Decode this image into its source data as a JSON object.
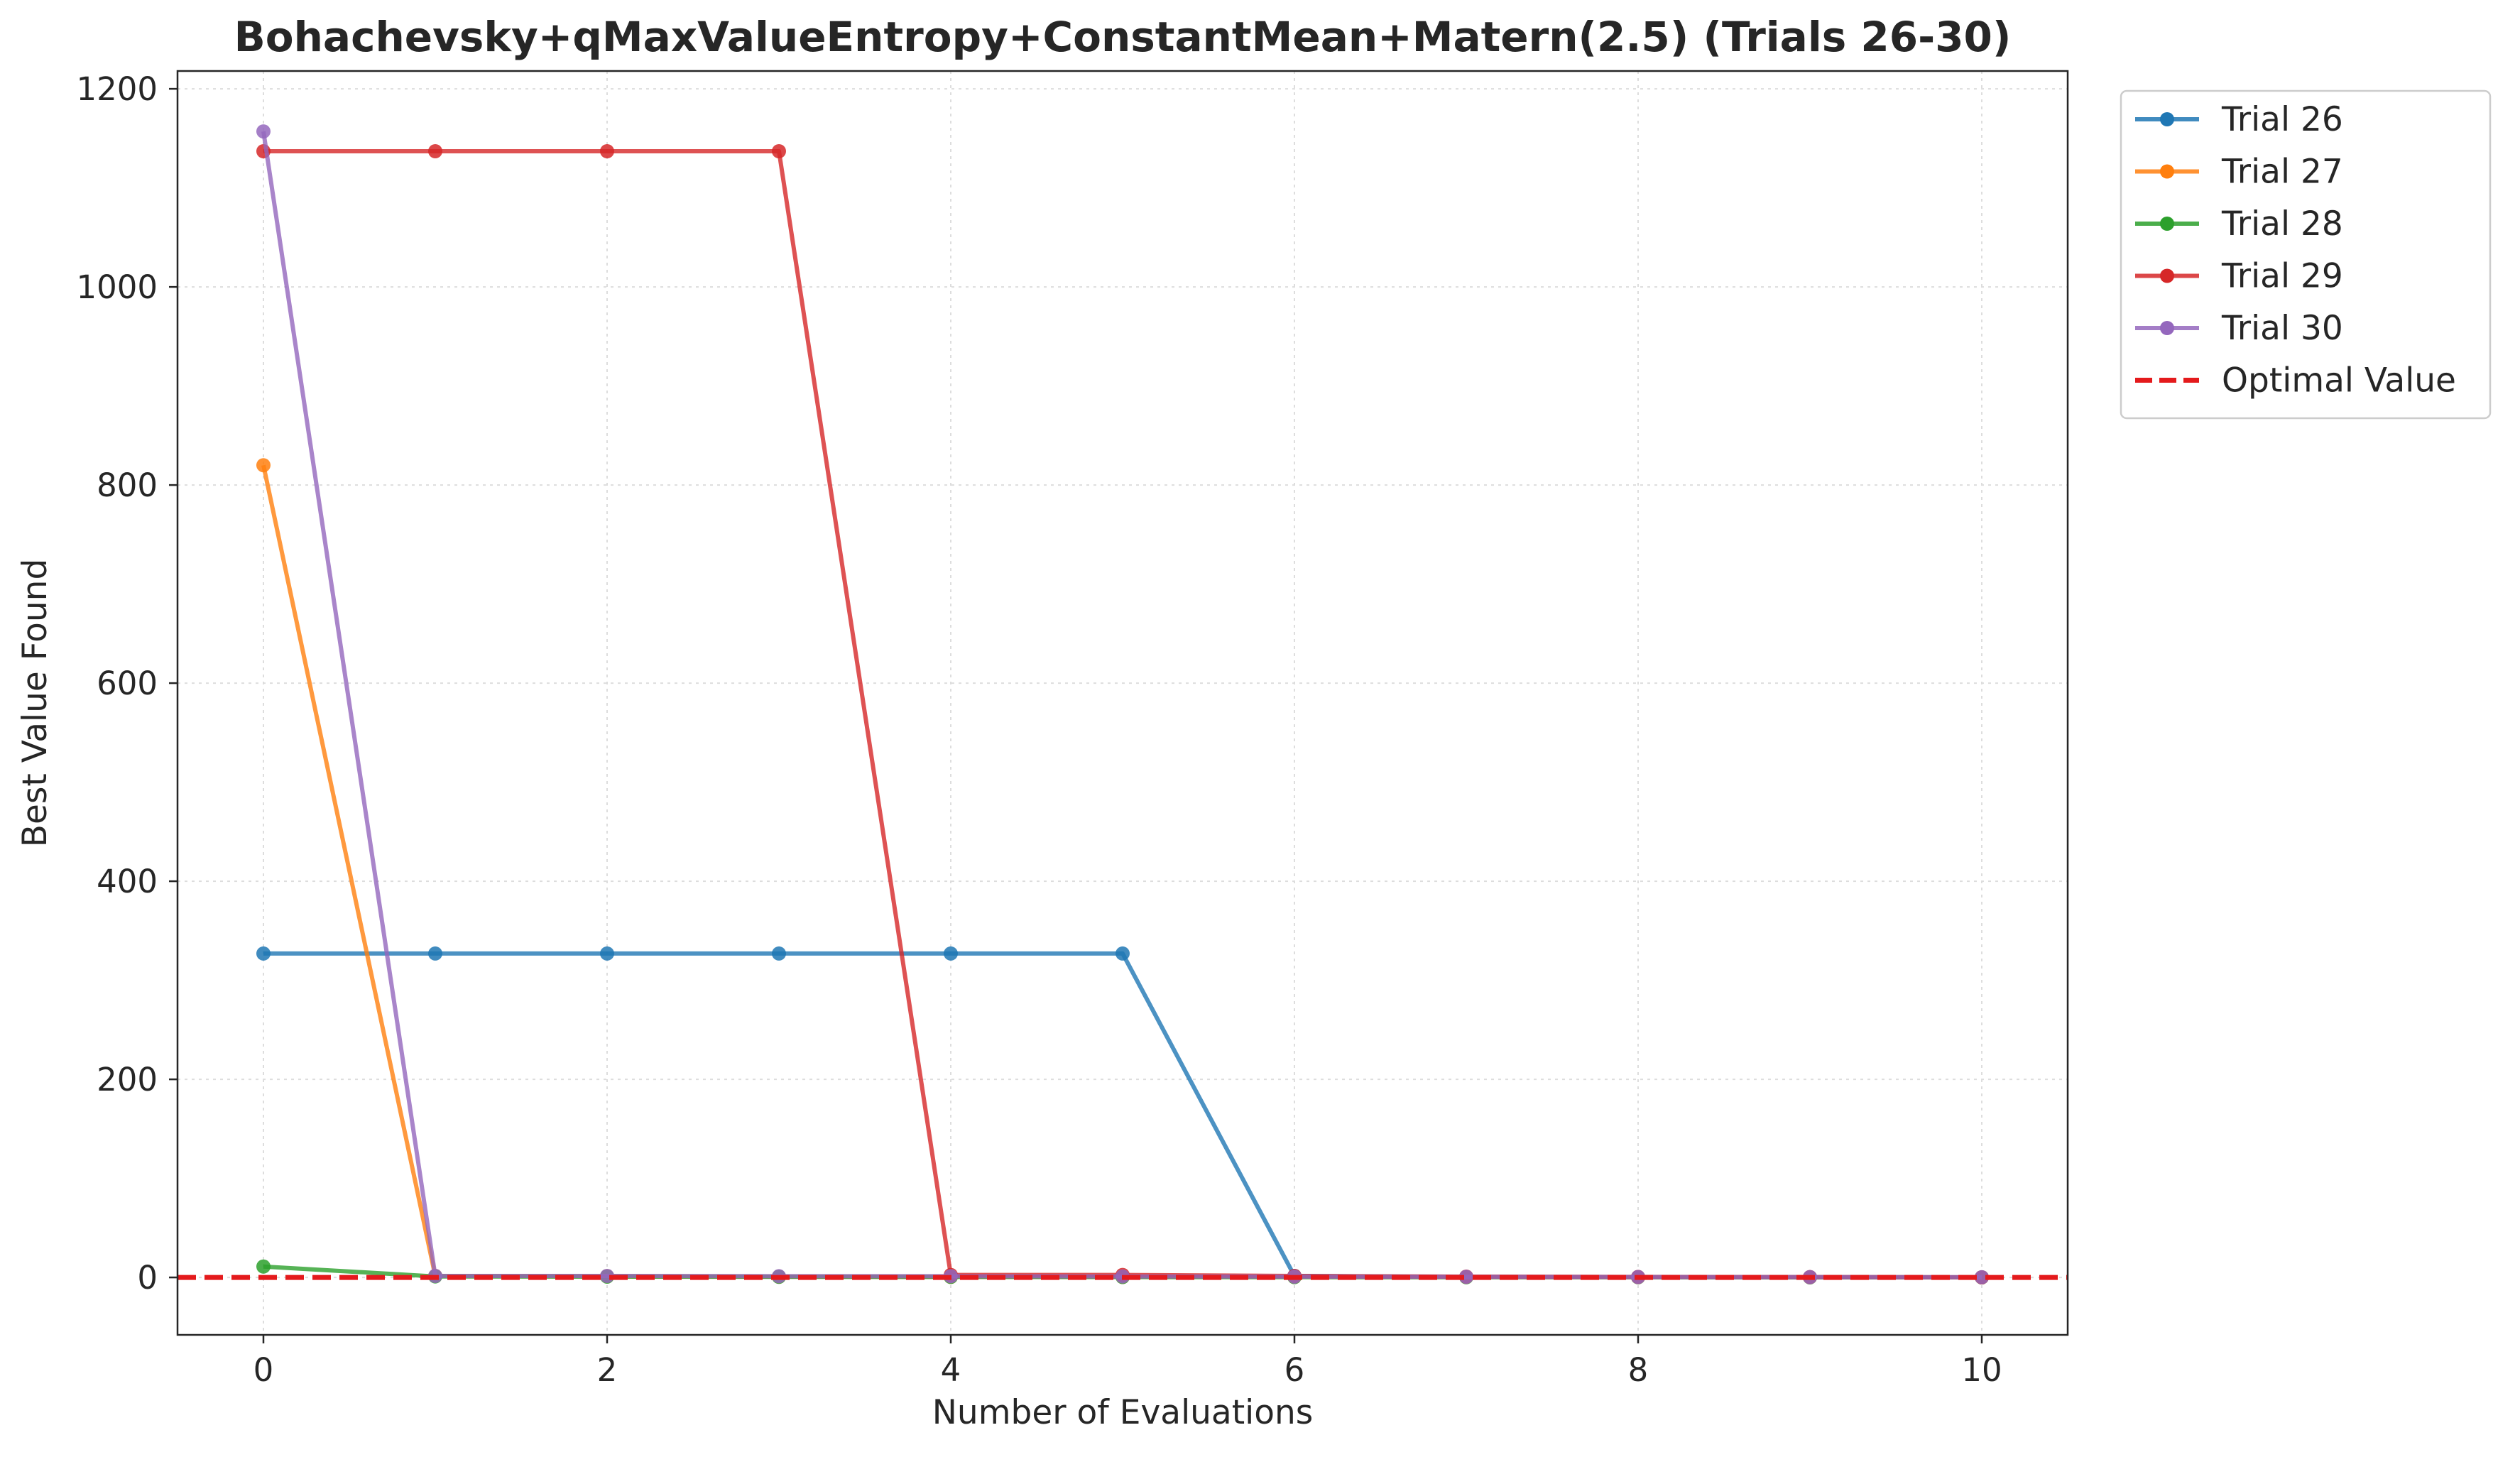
{
  "chart_data": {
    "type": "line",
    "title": "Bohachevsky+qMaxValueEntropy+ConstantMean+Matern(2.5) (Trials 26-30)",
    "xlabel": "Number of Evaluations",
    "ylabel": "Best Value Found",
    "xlim": [
      -0.5,
      10.5
    ],
    "ylim": [
      -58,
      1218
    ],
    "xticks": [
      0,
      2,
      4,
      6,
      8,
      10
    ],
    "yticks": [
      0,
      200,
      400,
      600,
      800,
      1000,
      1200
    ],
    "grid": true,
    "legend_position": "outside-top-right",
    "x": [
      0,
      1,
      2,
      3,
      4,
      5,
      6,
      7,
      8,
      9,
      10
    ],
    "series": [
      {
        "name": "Trial 26",
        "color": "#1f77b4",
        "values": [
          327,
          327,
          327,
          327,
          327,
          327,
          1.5,
          0.5,
          0.3,
          0.2,
          0.1
        ]
      },
      {
        "name": "Trial 27",
        "color": "#ff7f0e",
        "values": [
          820,
          1.5,
          1.2,
          0.8,
          0.6,
          0.5,
          0.4,
          0.3,
          0.2,
          0.2,
          0.1
        ]
      },
      {
        "name": "Trial 28",
        "color": "#2ca02c",
        "values": [
          11,
          1,
          0.8,
          0.6,
          0.5,
          0.4,
          0.3,
          0.2,
          0.2,
          0.1,
          0.1
        ]
      },
      {
        "name": "Trial 29",
        "color": "#d62728",
        "values": [
          1137,
          1137,
          1137,
          1137,
          2.5,
          2.5,
          1.5,
          0.8,
          0.5,
          0.3,
          0.1
        ]
      },
      {
        "name": "Trial 30",
        "color": "#9467bd",
        "values": [
          1157,
          1.5,
          1.5,
          1.2,
          1.2,
          1,
          0.8,
          0.6,
          0.4,
          0.3,
          0.2
        ]
      }
    ],
    "reference_line": {
      "name": "Optimal Value",
      "value": 0,
      "color": "#e41a1c",
      "style": "dashed"
    }
  }
}
